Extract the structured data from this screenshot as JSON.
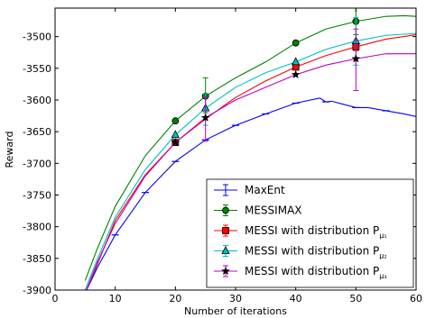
{
  "chart_data": {
    "type": "line",
    "xlabel": "Number of iterations",
    "ylabel": "Reward",
    "xlim": [
      0,
      60
    ],
    "ylim": [
      -3900,
      -3455
    ],
    "xticks": [
      0,
      10,
      20,
      30,
      40,
      50,
      60
    ],
    "xtick_labels": [
      "0",
      "10",
      "20",
      "30",
      "40",
      "50",
      "60"
    ],
    "yticks": [
      -3900,
      -3850,
      -3800,
      -3750,
      -3700,
      -3650,
      -3600,
      -3550,
      -3500
    ],
    "ytick_labels": [
      "-3900",
      "-3850",
      "-3800",
      "-3750",
      "-3700",
      "-3650",
      "-3600",
      "-3550",
      "-3500"
    ],
    "legend_position": "bottom-right",
    "series": [
      {
        "name": "MaxEnt",
        "label_main": "MaxEnt",
        "label_sub": "",
        "color": "#0000ff",
        "marker": "tick",
        "curve": [
          [
            5,
            -3905
          ],
          [
            7,
            -3865
          ],
          [
            10,
            -3813
          ],
          [
            15,
            -3746
          ],
          [
            20,
            -3697
          ],
          [
            25,
            -3663
          ],
          [
            30,
            -3640
          ],
          [
            35,
            -3622
          ],
          [
            40,
            -3605
          ],
          [
            44,
            -3597
          ],
          [
            45,
            -3603
          ],
          [
            46,
            -3602
          ],
          [
            48,
            -3607
          ],
          [
            50,
            -3612
          ],
          [
            52,
            -3612
          ],
          [
            55,
            -3617
          ],
          [
            58,
            -3622
          ],
          [
            60,
            -3626
          ]
        ],
        "markers": [
          [
            10,
            -3813
          ],
          [
            15,
            -3746
          ],
          [
            20,
            -3697
          ],
          [
            25,
            -3663
          ],
          [
            30,
            -3640
          ],
          [
            35,
            -3622
          ],
          [
            40,
            -3605
          ],
          [
            45,
            -3603
          ],
          [
            50,
            -3612
          ],
          [
            55,
            -3617
          ]
        ],
        "errorbars": []
      },
      {
        "name": "MESSIMAX",
        "label_main": "MESSIMAX",
        "label_sub": "",
        "color": "#008000",
        "marker": "circle",
        "curve": [
          [
            5,
            -3885
          ],
          [
            7,
            -3835
          ],
          [
            10,
            -3768
          ],
          [
            15,
            -3688
          ],
          [
            20,
            -3633
          ],
          [
            25,
            -3594
          ],
          [
            30,
            -3565
          ],
          [
            35,
            -3540
          ],
          [
            40,
            -3510
          ],
          [
            45,
            -3488
          ],
          [
            50,
            -3476
          ],
          [
            55,
            -3468
          ],
          [
            58,
            -3467
          ],
          [
            60,
            -3468
          ]
        ],
        "markers": [
          [
            20,
            -3633
          ],
          [
            40,
            -3510
          ]
        ],
        "errorbars": [
          [
            25,
            -3594,
            -3565,
            -3620
          ],
          [
            50,
            -3476,
            -3455,
            -3497
          ]
        ]
      },
      {
        "name": "MESSI with distribution P_mu1",
        "label_main": "MESSI with distribution P",
        "label_sub": "μ₁",
        "color": "#ff0000",
        "marker": "square",
        "curve": [
          [
            5,
            -3905
          ],
          [
            7,
            -3860
          ],
          [
            10,
            -3790
          ],
          [
            15,
            -3718
          ],
          [
            20,
            -3667
          ],
          [
            25,
            -3630
          ],
          [
            30,
            -3596
          ],
          [
            35,
            -3570
          ],
          [
            40,
            -3548
          ],
          [
            45,
            -3530
          ],
          [
            50,
            -3516
          ],
          [
            55,
            -3504
          ],
          [
            60,
            -3497
          ]
        ],
        "markers": [
          [
            20,
            -3667
          ],
          [
            40,
            -3548
          ]
        ],
        "errorbars": [
          [
            50,
            -3516,
            -3510,
            -3522
          ]
        ]
      },
      {
        "name": "MESSI with distribution P_mu2",
        "label_main": "MESSI with distribution P",
        "label_sub": "μ₂",
        "color": "#00bfbf",
        "marker": "triangle",
        "curve": [
          [
            5,
            -3900
          ],
          [
            7,
            -3852
          ],
          [
            10,
            -3785
          ],
          [
            15,
            -3710
          ],
          [
            20,
            -3655
          ],
          [
            25,
            -3613
          ],
          [
            30,
            -3580
          ],
          [
            35,
            -3557
          ],
          [
            40,
            -3540
          ],
          [
            45,
            -3520
          ],
          [
            50,
            -3507
          ],
          [
            55,
            -3498
          ],
          [
            60,
            -3495
          ]
        ],
        "markers": [
          [
            20,
            -3655
          ],
          [
            40,
            -3540
          ]
        ],
        "errorbars": [
          [
            25,
            -3613,
            -3590,
            -3640
          ],
          [
            50,
            -3507,
            -3470,
            -3545
          ]
        ]
      },
      {
        "name": "MESSI with distribution P_mu3",
        "label_main": "MESSI with distribution P",
        "label_sub": "μ₃",
        "color": "#bf00bf",
        "marker": "star",
        "curve": [
          [
            5,
            -3905
          ],
          [
            7,
            -3857
          ],
          [
            10,
            -3795
          ],
          [
            15,
            -3720
          ],
          [
            20,
            -3667
          ],
          [
            25,
            -3628
          ],
          [
            30,
            -3600
          ],
          [
            35,
            -3580
          ],
          [
            40,
            -3560
          ],
          [
            45,
            -3545
          ],
          [
            50,
            -3535
          ],
          [
            55,
            -3527
          ],
          [
            60,
            -3527
          ]
        ],
        "markers": [
          [
            20,
            -3667
          ],
          [
            40,
            -3560
          ]
        ],
        "errorbars": [
          [
            25,
            -3628,
            -3595,
            -3665
          ],
          [
            50,
            -3535,
            -3488,
            -3585
          ]
        ]
      }
    ]
  }
}
